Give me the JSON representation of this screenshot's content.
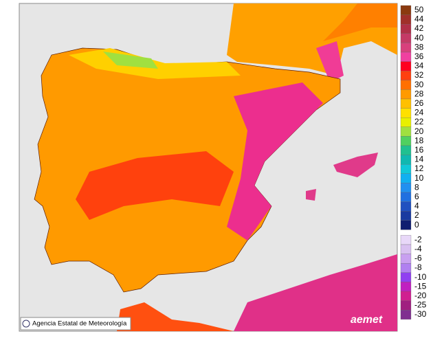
{
  "legend": {
    "labels": [
      50,
      44,
      42,
      40,
      38,
      36,
      34,
      32,
      30,
      28,
      26,
      24,
      22,
      20,
      18,
      16,
      14,
      12,
      10,
      8,
      6,
      4,
      2,
      0,
      -2,
      -4,
      -6,
      -8,
      -10,
      -15,
      -20,
      -25,
      -30
    ],
    "colors": [
      "#8b3a0f",
      "#a0302a",
      "#b03048",
      "#c43a66",
      "#d8407c",
      "#f040a0",
      "#ff0020",
      "#ff4010",
      "#ff7000",
      "#ff9a00",
      "#ffc000",
      "#ffe000",
      "#e8f000",
      "#a0e040",
      "#50d060",
      "#20c090",
      "#10b8b0",
      "#10c8d8",
      "#10b0f0",
      "#2090f0",
      "#2070e0",
      "#2050c0",
      "#1a3aa0",
      "#101e70",
      "#e8d8f8",
      "#d8c0f0",
      "#c8a0f0",
      "#b080f0",
      "#9040f0",
      "#c020c0",
      "#d02090",
      "#a02080",
      "#803090"
    ]
  },
  "credit": "Agencia Estatal de Meteorología",
  "logo": "aemet"
}
